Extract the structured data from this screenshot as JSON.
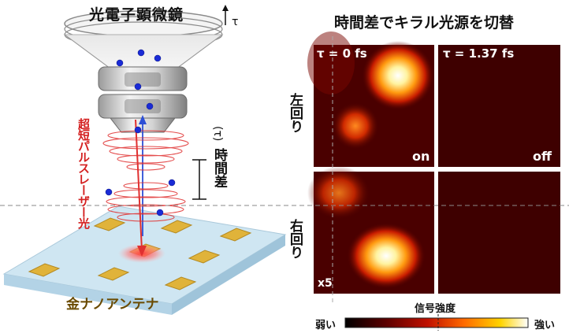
{
  "left": {
    "microscope_label": "光電子顕微鏡",
    "tau_label": "τ",
    "laser_label": "超短パルスレーザー光",
    "delay_label": "時間差",
    "delay_tau": "(τ)",
    "antenna_label": "金ナノアンテナ"
  },
  "right": {
    "title": "時間差でキラル光源を切替",
    "col_labels": [
      "τ = 0 fs",
      "τ = 1.37 fs"
    ],
    "row_labels": [
      "左回り",
      "右回り"
    ],
    "state_on": "on",
    "state_off": "off",
    "scale_note": "x5",
    "colorbar": {
      "title": "信号強度",
      "low_label": "弱い",
      "high_label": "強い",
      "colors": [
        "#000000",
        "#5a0000",
        "#c01000",
        "#ff6a00",
        "#ffd400",
        "#ffffff"
      ]
    }
  },
  "colors": {
    "panel_background": "#4a0000",
    "hot_spot": "#ffffff",
    "antenna_gold": "#e0b33a",
    "substrate": "#cfe6f2",
    "laser_red": "#e03030",
    "electron_blue": "#1a2bd6"
  }
}
